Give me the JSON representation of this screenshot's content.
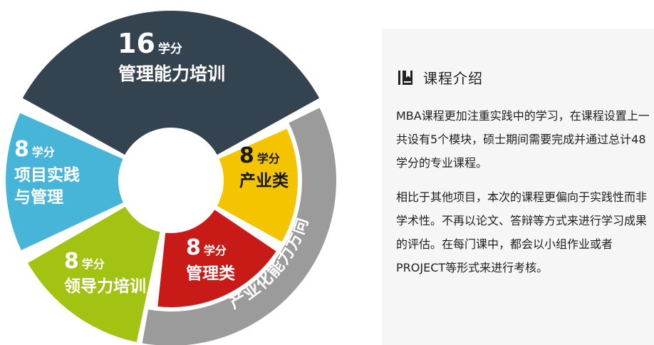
{
  "diagram": {
    "segments": [
      {
        "id": "mgmt-skills",
        "credits": "16",
        "unit": "学分",
        "label_lines": [
          "管理能力培训"
        ],
        "color": "#33434f"
      },
      {
        "id": "project-practice",
        "credits": "8",
        "unit": "学分",
        "label_lines": [
          "项目实践",
          "与管理"
        ],
        "color": "#47b5d8"
      },
      {
        "id": "leadership",
        "credits": "8",
        "unit": "学分",
        "label_lines": [
          "领导力培训"
        ],
        "color": "#a3c312"
      },
      {
        "id": "industry",
        "credits": "8",
        "unit": "学分",
        "label_lines": [
          "产业类"
        ],
        "color": "#f5c400"
      },
      {
        "id": "management",
        "credits": "8",
        "unit": "学分",
        "label_lines": [
          "管理类"
        ],
        "color": "#c81a16"
      }
    ],
    "outer_arc": {
      "label": "产业化能力方向",
      "color": "#9b9b9b"
    }
  },
  "panel": {
    "title": "课程介绍",
    "icon": "book-icon",
    "paragraph1": "MBA课程更加注重实践中的学习，在课程设置上一共设有5个模块，硕士期间需要完成并通过总计48学分的专业课程。",
    "paragraph2": "相比于其他项目，本次的课程更偏向于实践性而非学术性。不再以论文、答辩等方式来进行学习成果的评估。在每门课中，都会以小组作业或者PROJECT等形式来进行考核。"
  }
}
